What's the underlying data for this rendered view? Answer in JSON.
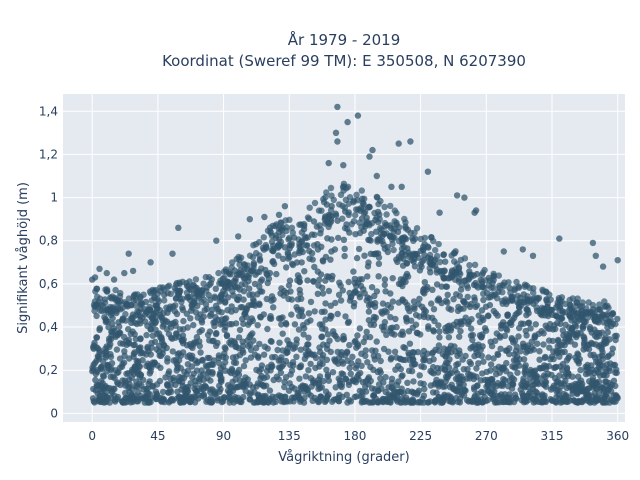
{
  "chart_data": {
    "type": "scatter",
    "title_lines": [
      "År 1979 - 2019",
      "Koordinat (Sweref 99 TM): E 350508, N 6207390"
    ],
    "xlabel": "Vågriktning (grader)",
    "ylabel": "Signifikant våghöjd (m)",
    "xlim": [
      -20,
      365
    ],
    "ylim": [
      -0.04,
      1.48
    ],
    "x_ticks": [
      0,
      45,
      90,
      135,
      180,
      225,
      270,
      315,
      360
    ],
    "x_tick_labels": [
      "0",
      "45",
      "90",
      "135",
      "180",
      "225",
      "270",
      "315",
      "360"
    ],
    "y_ticks": [
      0,
      0.2,
      0.4,
      0.6,
      0.8,
      1,
      1.2,
      1.4
    ],
    "y_tick_labels": [
      "0",
      "0,2",
      "0,4",
      "0,6",
      "0,8",
      "1",
      "1,2",
      "1,4"
    ],
    "grid": true,
    "marker_color": "#31566e",
    "background_color": "#e5e9f0",
    "envelope_note": "dense cloud of hourly observations spanning 0–360°, heights from about 0.05 m to an upper envelope peaking near 170–180°",
    "upper_envelope": [
      {
        "x": 0,
        "y": 0.55
      },
      {
        "x": 30,
        "y": 0.52
      },
      {
        "x": 60,
        "y": 0.57
      },
      {
        "x": 90,
        "y": 0.62
      },
      {
        "x": 120,
        "y": 0.8
      },
      {
        "x": 150,
        "y": 0.9
      },
      {
        "x": 165,
        "y": 1.0
      },
      {
        "x": 180,
        "y": 1.0
      },
      {
        "x": 200,
        "y": 0.92
      },
      {
        "x": 225,
        "y": 0.8
      },
      {
        "x": 250,
        "y": 0.7
      },
      {
        "x": 270,
        "y": 0.62
      },
      {
        "x": 300,
        "y": 0.55
      },
      {
        "x": 330,
        "y": 0.5
      },
      {
        "x": 360,
        "y": 0.48
      }
    ],
    "outliers": [
      {
        "x": 168,
        "y": 1.42
      },
      {
        "x": 182,
        "y": 1.38
      },
      {
        "x": 175,
        "y": 1.35
      },
      {
        "x": 167,
        "y": 1.3
      },
      {
        "x": 168,
        "y": 1.26
      },
      {
        "x": 192,
        "y": 1.22
      },
      {
        "x": 190,
        "y": 1.19
      },
      {
        "x": 210,
        "y": 1.25
      },
      {
        "x": 218,
        "y": 1.26
      },
      {
        "x": 230,
        "y": 1.12
      },
      {
        "x": 162,
        "y": 1.16
      },
      {
        "x": 172,
        "y": 1.15
      },
      {
        "x": 195,
        "y": 1.1
      },
      {
        "x": 205,
        "y": 1.05
      },
      {
        "x": 212,
        "y": 1.05
      },
      {
        "x": 250,
        "y": 1.01
      },
      {
        "x": 255,
        "y": 1.0
      },
      {
        "x": 263,
        "y": 0.94
      },
      {
        "x": 262,
        "y": 0.93
      },
      {
        "x": 238,
        "y": 0.93
      },
      {
        "x": 108,
        "y": 0.9
      },
      {
        "x": 118,
        "y": 0.91
      },
      {
        "x": 128,
        "y": 0.92
      },
      {
        "x": 132,
        "y": 0.96
      },
      {
        "x": 59,
        "y": 0.86
      },
      {
        "x": 85,
        "y": 0.8
      },
      {
        "x": 100,
        "y": 0.82
      },
      {
        "x": 343,
        "y": 0.79
      },
      {
        "x": 320,
        "y": 0.81
      },
      {
        "x": 295,
        "y": 0.76
      },
      {
        "x": 282,
        "y": 0.75
      },
      {
        "x": 302,
        "y": 0.73
      },
      {
        "x": 25,
        "y": 0.74
      },
      {
        "x": 40,
        "y": 0.7
      },
      {
        "x": 55,
        "y": 0.74
      },
      {
        "x": 360,
        "y": 0.71
      },
      {
        "x": 345,
        "y": 0.73
      },
      {
        "x": 350,
        "y": 0.68
      },
      {
        "x": 5,
        "y": 0.67
      },
      {
        "x": 10,
        "y": 0.65
      },
      {
        "x": 0,
        "y": 0.62
      },
      {
        "x": 2,
        "y": 0.63
      },
      {
        "x": 15,
        "y": 0.62
      },
      {
        "x": 22,
        "y": 0.65
      },
      {
        "x": 28,
        "y": 0.66
      }
    ]
  }
}
